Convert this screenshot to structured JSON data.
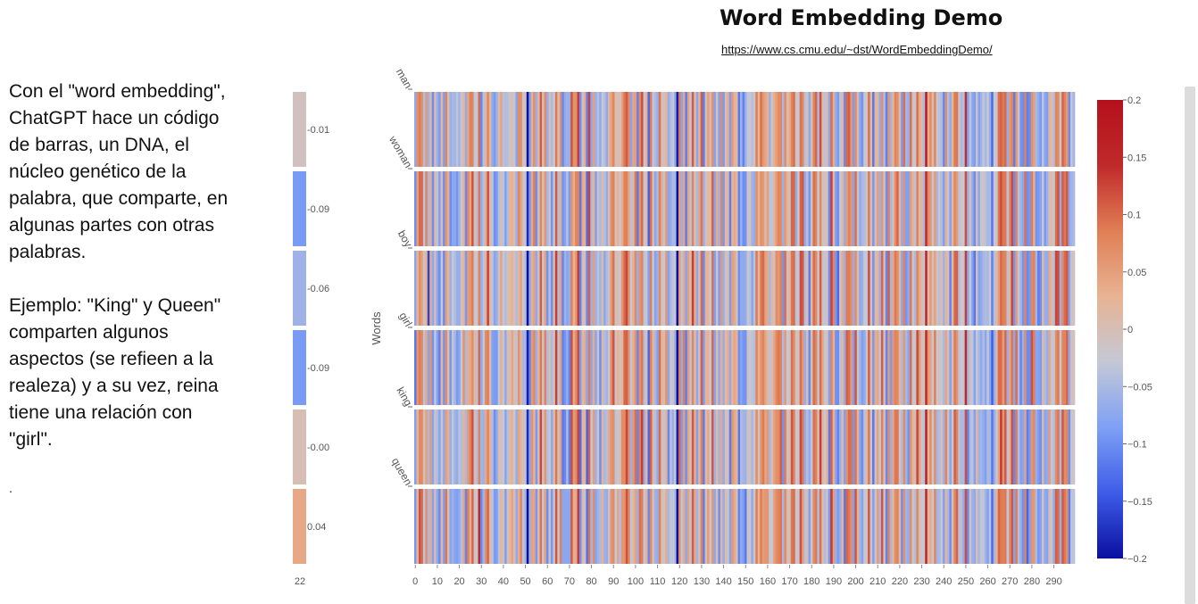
{
  "header": {
    "title": "Word Embedding Demo",
    "link": "https://www.cs.cmu.edu/~dst/WordEmbeddingDemo/"
  },
  "description": {
    "paragraph1": "Con el  \"word embedding\", ChatGPT hace un código de barras, un DNA, el núcleo genético de la palabra, que comparte, en algunas partes con otras palabras.",
    "paragraph2": "Ejemplo: \"King\" y Queen\" comparten algunos aspectos (se refieen a la realeza) y a su vez, reina tiene una relación con \"girl\".",
    "footnote": "."
  },
  "chart_data": {
    "type": "heatmap",
    "title": "Word Embedding Demo",
    "ylabel": "Words",
    "xlabel": "",
    "rows": [
      "man",
      "woman",
      "boy",
      "girl",
      "king",
      "queen"
    ],
    "dimension_count": 300,
    "x_ticks": [
      0,
      10,
      20,
      30,
      40,
      50,
      60,
      70,
      80,
      90,
      100,
      110,
      120,
      130,
      140,
      150,
      160,
      170,
      180,
      190,
      200,
      210,
      220,
      230,
      240,
      250,
      260,
      270,
      280,
      290
    ],
    "selected_dimension": {
      "label": "22",
      "values": [
        -0.01,
        -0.09,
        -0.06,
        -0.09,
        0.0,
        0.04
      ],
      "value_labels": [
        "-0.01",
        "-0.09",
        "-0.06",
        "-0.09",
        "-0.00",
        "0.04"
      ]
    },
    "colorscale": {
      "name": "coolwarm",
      "range": [
        -0.2,
        0.2
      ],
      "stops": [
        "#0a0fa0",
        "#3d5ce8",
        "#7ea0f5",
        "#c4c8d6",
        "#e8b393",
        "#e07e55",
        "#c02a2a",
        "#b4101c"
      ],
      "ticks": [
        0.2,
        0.15,
        0.1,
        0.05,
        0,
        -0.05,
        -0.1,
        -0.15,
        -0.2
      ],
      "tick_labels": [
        "0.2",
        "0.15",
        "0.1",
        "0.05",
        "0",
        "−0.05",
        "−0.1",
        "−0.15",
        "−0.2"
      ]
    },
    "strong_dimensions": [
      {
        "dim": 6,
        "values": [
          -0.06,
          -0.05,
          -0.16,
          -0.08,
          -0.05,
          -0.05
        ]
      },
      {
        "dim": 14,
        "values": [
          0.08,
          0.06,
          0.05,
          0.07,
          0.05,
          0.09
        ]
      },
      {
        "dim": 29,
        "values": [
          0.1,
          0.09,
          0.08,
          0.1,
          0.08,
          0.15
        ]
      },
      {
        "dim": 36,
        "values": [
          -0.09,
          -0.1,
          -0.08,
          -0.09,
          -0.1,
          -0.09
        ]
      },
      {
        "dim": 51,
        "values": [
          -0.2,
          -0.18,
          -0.2,
          -0.19,
          -0.18,
          -0.2
        ]
      },
      {
        "dim": 59,
        "values": [
          0.07,
          0.06,
          0.05,
          0.08,
          0.06,
          0.05
        ]
      },
      {
        "dim": 75,
        "values": [
          -0.1,
          -0.12,
          -0.11,
          -0.09,
          -0.13,
          -0.1
        ]
      },
      {
        "dim": 95,
        "values": [
          0.09,
          0.08,
          0.1,
          0.1,
          0.07,
          0.06
        ]
      },
      {
        "dim": 119,
        "values": [
          -0.19,
          -0.2,
          -0.2,
          -0.2,
          -0.19,
          -0.2
        ]
      },
      {
        "dim": 147,
        "values": [
          -0.12,
          -0.11,
          -0.1,
          -0.1,
          -0.12,
          -0.11
        ]
      },
      {
        "dim": 165,
        "values": [
          0.07,
          0.08,
          0.06,
          0.09,
          0.07,
          0.08
        ]
      },
      {
        "dim": 192,
        "values": [
          -0.09,
          -0.1,
          -0.13,
          -0.1,
          -0.11,
          -0.09
        ]
      },
      {
        "dim": 218,
        "values": [
          0.08,
          0.07,
          0.09,
          0.08,
          0.09,
          0.07
        ]
      },
      {
        "dim": 232,
        "values": [
          0.18,
          0.15,
          0.16,
          0.15,
          0.17,
          0.16
        ]
      },
      {
        "dim": 250,
        "values": [
          0.14,
          0.12,
          0.13,
          0.15,
          0.12,
          0.12
        ]
      },
      {
        "dim": 262,
        "values": [
          -0.13,
          -0.12,
          -0.11,
          -0.14,
          -0.12,
          -0.13
        ]
      },
      {
        "dim": 268,
        "values": [
          0.1,
          0.09,
          0.08,
          0.1,
          0.11,
          0.09
        ]
      },
      {
        "dim": 284,
        "values": [
          -0.09,
          -0.08,
          -0.1,
          -0.09,
          -0.1,
          -0.08
        ]
      },
      {
        "dim": 295,
        "values": [
          0.08,
          0.09,
          0.1,
          0.08,
          0.07,
          0.09
        ]
      }
    ]
  }
}
